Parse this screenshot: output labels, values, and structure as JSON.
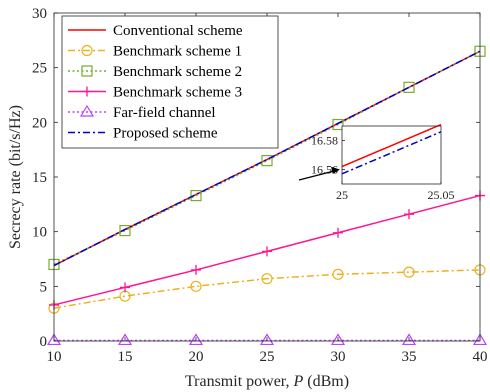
{
  "chart_data": {
    "type": "line",
    "xlabel": "Transmit power, ",
    "xlabel_var": "P",
    "xlabel_unit": " (dBm)",
    "ylabel": "Secrecy rate (bit/s/Hz)",
    "xlim": [
      10,
      40
    ],
    "ylim": [
      0,
      30
    ],
    "xticks": [
      10,
      15,
      20,
      25,
      30,
      35,
      40
    ],
    "yticks": [
      0,
      5,
      10,
      15,
      20,
      25,
      30
    ],
    "grid": false,
    "legend_position": "top-left",
    "x": [
      10,
      15,
      20,
      25,
      30,
      35,
      40
    ],
    "series": [
      {
        "name": "Conventional scheme",
        "color": "#ff0000",
        "dash": "solid",
        "marker": "none",
        "values": [
          6.9,
          10.2,
          13.4,
          16.6,
          19.9,
          23.2,
          26.5
        ]
      },
      {
        "name": "Benchmark scheme 1",
        "color": "#edb120",
        "dash": "dashdot",
        "marker": "circle",
        "values": [
          3.0,
          4.1,
          5.0,
          5.7,
          6.1,
          6.3,
          6.5
        ]
      },
      {
        "name": "Benchmark scheme 2",
        "color": "#77ac30",
        "dash": "dotted",
        "marker": "square",
        "values": [
          7.0,
          10.1,
          13.3,
          16.5,
          19.8,
          23.2,
          26.5
        ]
      },
      {
        "name": "Benchmark scheme 3",
        "color": "#ff1493",
        "dash": "solid",
        "marker": "plus",
        "values": [
          3.3,
          4.9,
          6.5,
          8.2,
          9.9,
          11.6,
          13.3
        ]
      },
      {
        "name": "Far-field channel",
        "color": "#bf40ff",
        "dash": "dotted",
        "marker": "triangle",
        "values": [
          0.05,
          0.05,
          0.05,
          0.05,
          0.05,
          0.05,
          0.05
        ]
      },
      {
        "name": "Proposed scheme",
        "color": "#0000cd",
        "dash": "dashdot",
        "marker": "none",
        "values": [
          6.9,
          10.2,
          13.4,
          16.6,
          19.9,
          23.2,
          26.5
        ]
      }
    ],
    "inset": {
      "xlim": [
        25,
        25.05
      ],
      "ylim": [
        16.55,
        16.59
      ],
      "xticks": [
        "25",
        "25.05"
      ],
      "yticks": [
        "16.56",
        "16.58"
      ],
      "series": [
        {
          "name": "Conventional scheme",
          "color": "#ff0000",
          "dash": "solid",
          "x": [
            25,
            25.05
          ],
          "values": [
            16.562,
            16.591
          ]
        },
        {
          "name": "Proposed scheme",
          "color": "#0000cd",
          "dash": "dashdot",
          "x": [
            25,
            25.05
          ],
          "values": [
            16.557,
            16.586
          ]
        }
      ]
    }
  }
}
